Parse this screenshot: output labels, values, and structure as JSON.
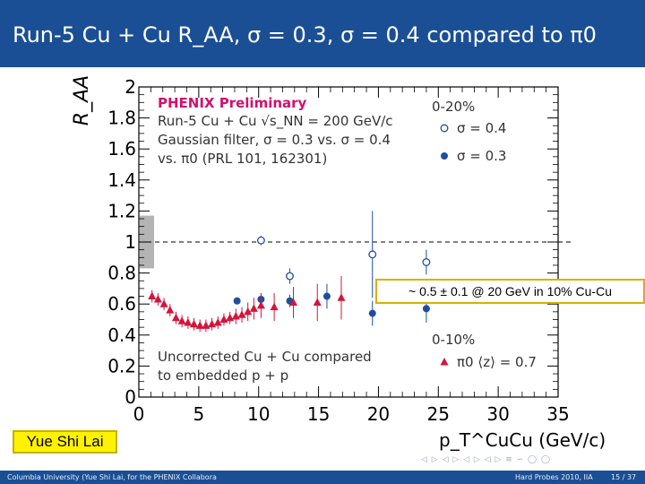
{
  "slide": {
    "title": "Run-5 Cu + Cu R_AA, σ = 0.3, σ = 0.4 compared to π0",
    "presenter": "Yue Shi Lai",
    "annotation": "~ 0.5 ± 0.1 @ 20 GeV in 10% Cu-Cu"
  },
  "footer": {
    "left": "Columbia University (Yue Shi Lai, for the PHENIX Collabora",
    "center": "Hard Probes 2010, IIA",
    "right": "15 / 37"
  },
  "colors": {
    "header": "#1a4f96",
    "phenix": "#d0116e",
    "jet": "#1f4e9c",
    "pi0": "#d4143c",
    "annotation_border": "#d7b000",
    "presenter_bg": "#fff200"
  },
  "chart_data": {
    "type": "scatter",
    "title": "",
    "xlabel": "p_T^CuCu (GeV/c)",
    "ylabel": "R_AA",
    "xlim": [
      0,
      35
    ],
    "ylim": [
      0,
      2
    ],
    "xticks": [
      "0",
      "5",
      "10",
      "15",
      "20",
      "25",
      "30",
      "35"
    ],
    "yticks": [
      "0",
      "0.2",
      "0.4",
      "0.6",
      "0.8",
      "1",
      "1.2",
      "1.4",
      "1.6",
      "1.8",
      "2"
    ],
    "reference_line": 1,
    "grid": false,
    "label_phenix": "PHENIX Preliminary",
    "label_run": "Run-5 Cu + Cu",
    "label_energy": "√s_NN = 200 GeV/c",
    "label_filter": "Gaussian filter, σ = 0.3 vs. σ = 0.4",
    "label_ref": "vs. π0 (PRL 101, 162301)",
    "label_note1": "Uncorrected Cu + Cu compared",
    "label_note2": "to embedded p + p",
    "legend_central": "0-20%",
    "legend_peripheral": "0-10%",
    "series": [
      {
        "name": "σ = 0.4",
        "marker": "open-circle",
        "x": [
          10.2,
          12.6,
          19.5,
          24.0
        ],
        "y": [
          1.01,
          0.78,
          0.92,
          0.87
        ],
        "err": [
          0.03,
          0.05,
          0.28,
          0.08
        ]
      },
      {
        "name": "σ = 0.3",
        "marker": "filled-circle",
        "x": [
          8.2,
          10.2,
          12.6,
          15.7,
          19.5,
          24.0
        ],
        "y": [
          0.62,
          0.63,
          0.62,
          0.65,
          0.54,
          0.57
        ],
        "err": [
          0.02,
          0.04,
          0.04,
          0.08,
          0.08,
          0.09
        ]
      },
      {
        "name": "π0 ⟨z⟩ = 0.7",
        "marker": "filled-triangle",
        "x": [
          1.1,
          1.6,
          2.1,
          2.6,
          3.1,
          3.6,
          4.1,
          4.6,
          5.1,
          5.6,
          6.1,
          6.6,
          7.1,
          7.6,
          8.1,
          8.6,
          9.1,
          9.6,
          10.2,
          11.3,
          12.9,
          14.9,
          16.9
        ],
        "y": [
          0.65,
          0.63,
          0.6,
          0.56,
          0.51,
          0.49,
          0.48,
          0.47,
          0.46,
          0.46,
          0.47,
          0.48,
          0.5,
          0.51,
          0.52,
          0.53,
          0.55,
          0.57,
          0.59,
          0.58,
          0.61,
          0.61,
          0.64
        ],
        "err": [
          0.04,
          0.04,
          0.04,
          0.04,
          0.04,
          0.04,
          0.04,
          0.04,
          0.04,
          0.04,
          0.04,
          0.04,
          0.04,
          0.04,
          0.05,
          0.05,
          0.06,
          0.07,
          0.08,
          0.09,
          0.1,
          0.12,
          0.14
        ]
      }
    ]
  }
}
